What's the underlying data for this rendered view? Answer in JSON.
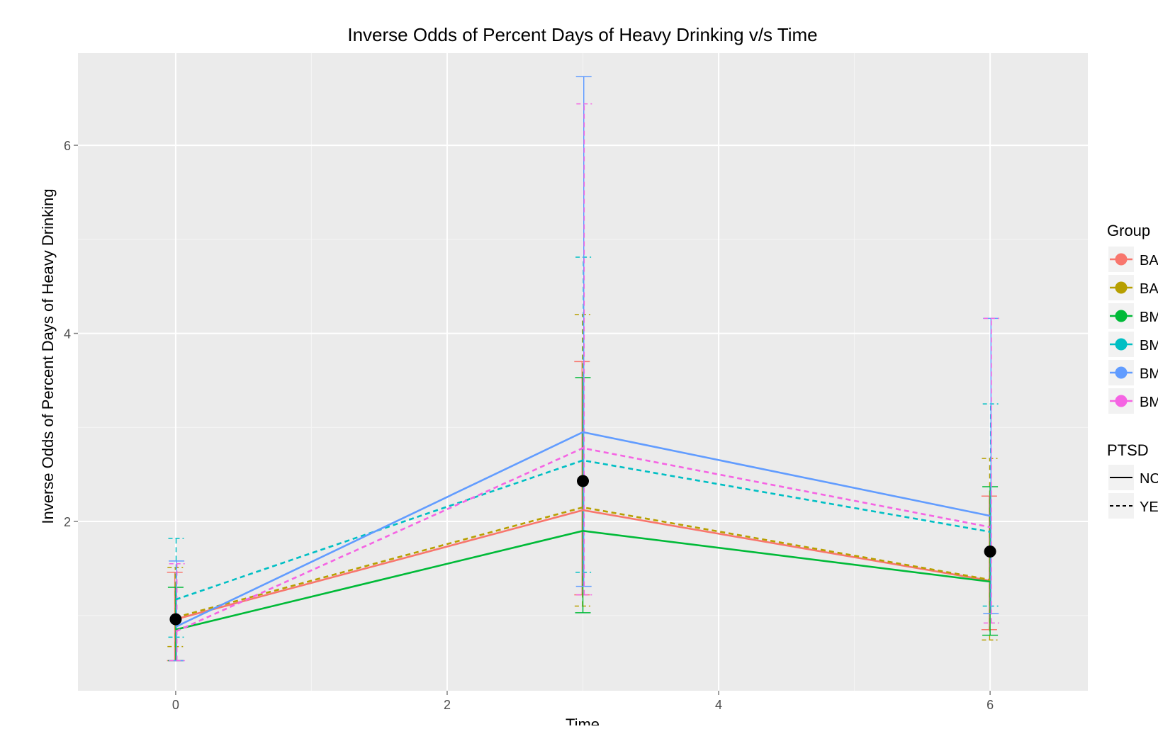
{
  "chart_data": {
    "type": "line",
    "title": "Inverse Odds of Percent Days of Heavy Drinking v/s Time",
    "xlabel": "Time",
    "ylabel": "Inverse Odds of Percent Days of Heavy Drinking",
    "xlim": [
      -0.72,
      6.72
    ],
    "ylim": [
      0.2,
      6.98
    ],
    "x_ticks": [
      0,
      2,
      4,
      6
    ],
    "y_ticks": [
      2,
      4,
      6
    ],
    "y_minor_ticks": [
      1,
      3,
      5
    ],
    "x_minor_ticks": [
      1,
      3,
      5
    ],
    "grid": true,
    "panel_background": "#ebebeb",
    "x": [
      0,
      3,
      6
    ],
    "legend": {
      "placement": "right",
      "group_title": "Group",
      "group_labels": [
        "BA",
        "BA",
        "BM",
        "BM",
        "BM",
        "BM"
      ],
      "ptsd_title": "PTSD",
      "ptsd_labels": [
        "NC",
        "YE"
      ]
    },
    "series": [
      {
        "group_index": 0,
        "ptsd": "NO",
        "color": "#F8766D",
        "values": [
          0.96,
          2.12,
          1.37
        ],
        "error_bars": [
          {
            "x": 0,
            "low": 0.52,
            "high": 1.46
          },
          {
            "x": 3,
            "low": 1.22,
            "high": 3.7
          },
          {
            "x": 6,
            "low": 0.85,
            "high": 2.27
          }
        ]
      },
      {
        "group_index": 1,
        "ptsd": "YES",
        "color": "#B79F00",
        "values": [
          0.98,
          2.15,
          1.38
        ],
        "error_bars": [
          {
            "x": 0,
            "low": 0.67,
            "high": 1.51
          },
          {
            "x": 3,
            "low": 1.1,
            "high": 4.2
          },
          {
            "x": 6,
            "low": 0.74,
            "high": 2.67
          }
        ]
      },
      {
        "group_index": 2,
        "ptsd": "NO",
        "color": "#00BA38",
        "values": [
          0.85,
          1.9,
          1.36
        ],
        "error_bars": [
          {
            "x": 0,
            "low": 0.52,
            "high": 1.3
          },
          {
            "x": 3,
            "low": 1.03,
            "high": 3.53
          },
          {
            "x": 6,
            "low": 0.79,
            "high": 2.37
          }
        ]
      },
      {
        "group_index": 3,
        "ptsd": "YES",
        "color": "#00BFC4",
        "values": [
          1.17,
          2.65,
          1.89
        ],
        "error_bars": [
          {
            "x": 0,
            "low": 0.77,
            "high": 1.82
          },
          {
            "x": 3,
            "low": 1.46,
            "high": 4.81
          },
          {
            "x": 6,
            "low": 1.1,
            "high": 3.25
          }
        ]
      },
      {
        "group_index": 4,
        "ptsd": "NO",
        "color": "#619CFF",
        "values": [
          0.88,
          2.95,
          2.06
        ],
        "error_bars": [
          {
            "x": 0,
            "low": 0.52,
            "high": 1.58
          },
          {
            "x": 3,
            "low": 1.31,
            "high": 6.73
          },
          {
            "x": 6,
            "low": 1.02,
            "high": 4.16
          }
        ]
      },
      {
        "group_index": 5,
        "ptsd": "YES",
        "color": "#F564E3",
        "values": [
          0.83,
          2.78,
          1.94
        ],
        "error_bars": [
          {
            "x": 0,
            "low": 0.52,
            "high": 1.55
          },
          {
            "x": 3,
            "low": 1.22,
            "high": 6.44
          },
          {
            "x": 6,
            "low": 0.92,
            "high": 4.16
          }
        ]
      }
    ],
    "mean_points": {
      "color": "#000000",
      "x": [
        0,
        3,
        6
      ],
      "values": [
        0.96,
        2.43,
        1.68
      ]
    }
  }
}
